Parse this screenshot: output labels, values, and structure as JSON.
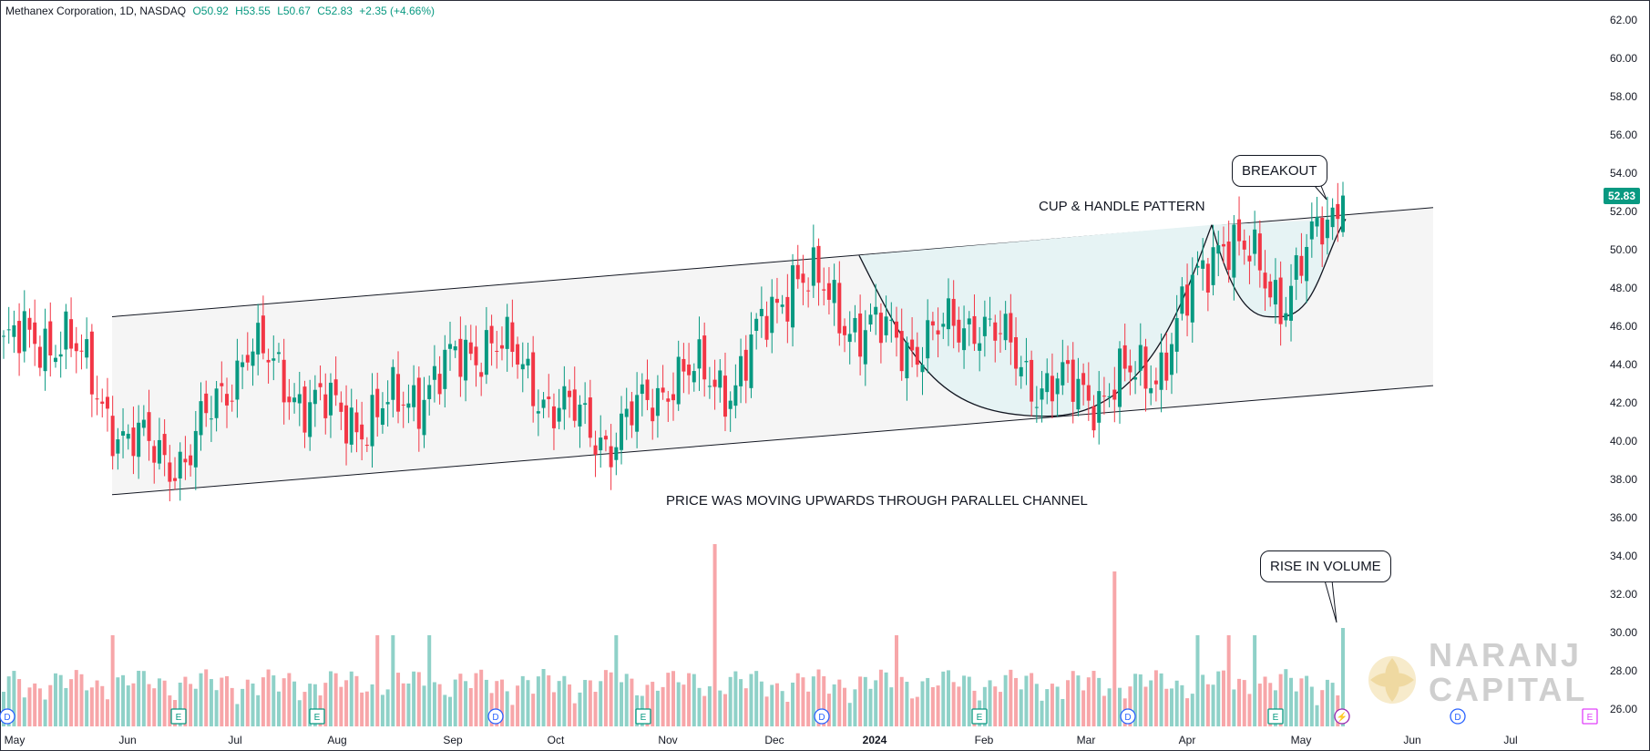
{
  "header": {
    "symbol": "Methanex Corporation, 1D, NASDAQ",
    "open": "O50.92",
    "high": "H53.55",
    "low": "L50.67",
    "close": "C52.83",
    "change": "+2.35 (+4.66%)"
  },
  "last_price": "52.83",
  "annotations": {
    "breakout": "BREAKOUT",
    "cup_handle": "CUP & HANDLE PATTERN",
    "channel_note": "PRICE WAS MOVING UPWARDS THROUGH PARALLEL CHANNEL",
    "rise_volume": "RISE IN VOLUME"
  },
  "logo": {
    "line1": "NARANJ",
    "line2": "CAPITAL"
  },
  "colors": {
    "up": "#089981",
    "down": "#f23645",
    "vol_up": "#8fd1c8",
    "vol_down": "#f7a6a9",
    "channel_fill": "#f5f5f5",
    "cup_fill": "#e6f3f4",
    "event_D": "#2962ff",
    "event_E": "#089981",
    "event_S": "#9c27b0",
    "event_E_future": "#e040fb"
  },
  "chart_data": {
    "type": "candlestick",
    "y_axis": {
      "min": 25.5,
      "max": 63,
      "ticks": [
        "26.00",
        "28.00",
        "30.00",
        "32.00",
        "34.00",
        "36.00",
        "38.00",
        "40.00",
        "42.00",
        "44.00",
        "46.00",
        "48.00",
        "50.00",
        "52.00",
        "54.00",
        "56.00",
        "58.00",
        "60.00",
        "62.00"
      ]
    },
    "x_axis": {
      "labels": [
        "May",
        "Jun",
        "Jul",
        "Aug",
        "Sep",
        "Oct",
        "Nov",
        "Dec",
        "2024",
        "Feb",
        "Mar",
        "Apr",
        "May",
        "Jun",
        "Jul"
      ]
    },
    "ohlc_anchors": [
      {
        "date": "May",
        "close": 45
      },
      {
        "date": "Jun",
        "close": 45.5
      },
      {
        "date": "Jun",
        "close": 40
      },
      {
        "date": "Jul",
        "close": 39
      },
      {
        "date": "Aug",
        "close": 45
      },
      {
        "date": "Aug",
        "close": 42
      },
      {
        "date": "Sep",
        "close": 41
      },
      {
        "date": "Sep",
        "close": 43
      },
      {
        "date": "Oct",
        "close": 45.5
      },
      {
        "date": "Oct",
        "close": 42
      },
      {
        "date": "Nov",
        "close": 40
      },
      {
        "date": "Nov",
        "close": 43.5
      },
      {
        "date": "Dec",
        "close": 43
      },
      {
        "date": "Dec",
        "close": 49
      },
      {
        "date": "2024",
        "close": 46
      },
      {
        "date": "Feb",
        "close": 45
      },
      {
        "date": "Feb",
        "close": 46.5
      },
      {
        "date": "Feb",
        "close": 43
      },
      {
        "date": "Mar",
        "close": 42.5
      },
      {
        "date": "Mar",
        "close": 44
      },
      {
        "date": "Apr",
        "close": 51
      },
      {
        "date": "May",
        "close": 47.5
      },
      {
        "date": "May",
        "close": 52.83
      }
    ],
    "last_bar": {
      "open": 50.92,
      "high": 53.55,
      "low": 50.67,
      "close": 52.83
    },
    "channel": {
      "upper": [
        {
          "date": "Jun",
          "value": 46.5
        },
        {
          "date": "Jun (end)",
          "value": 52.2
        }
      ],
      "lower": [
        {
          "date": "Jun",
          "value": 37.2
        },
        {
          "date": "Jun (end)",
          "value": 42.9
        }
      ]
    },
    "cup_pattern": {
      "left_rim": 49.7,
      "bottom": 41.3,
      "right_rim": 51.3,
      "handle_low": 46.5
    },
    "events": [
      "D",
      "E",
      "E",
      "D",
      "E",
      "D",
      "E",
      "D",
      "E",
      "S",
      "D",
      "E"
    ]
  }
}
